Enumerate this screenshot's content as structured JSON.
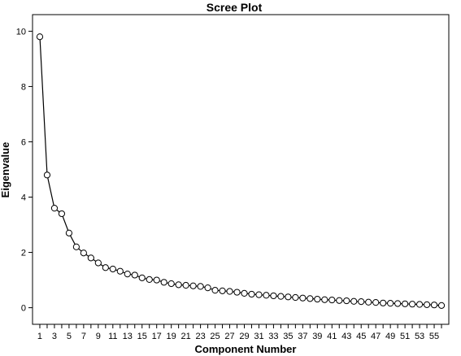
{
  "chart_data": {
    "type": "line",
    "title": "Scree Plot",
    "xlabel": "Component Number",
    "ylabel": "Eigenvalue",
    "xlim": [
      0,
      57
    ],
    "ylim": [
      -0.6,
      10.6
    ],
    "x_ticks": [
      1,
      3,
      5,
      7,
      9,
      11,
      13,
      15,
      17,
      19,
      21,
      23,
      25,
      27,
      29,
      31,
      33,
      35,
      37,
      39,
      41,
      43,
      45,
      47,
      49,
      51,
      53,
      55
    ],
    "y_ticks": [
      0,
      2,
      4,
      6,
      8,
      10
    ],
    "x": [
      1,
      2,
      3,
      4,
      5,
      6,
      7,
      8,
      9,
      10,
      11,
      12,
      13,
      14,
      15,
      16,
      17,
      18,
      19,
      20,
      21,
      22,
      23,
      24,
      25,
      26,
      27,
      28,
      29,
      30,
      31,
      32,
      33,
      34,
      35,
      36,
      37,
      38,
      39,
      40,
      41,
      42,
      43,
      44,
      45,
      46,
      47,
      48,
      49,
      50,
      51,
      52,
      53,
      54,
      55,
      56
    ],
    "series": [
      {
        "values": [
          9.8,
          4.8,
          3.6,
          3.4,
          2.7,
          2.2,
          1.98,
          1.8,
          1.62,
          1.45,
          1.4,
          1.32,
          1.22,
          1.18,
          1.08,
          1.02,
          1.0,
          0.92,
          0.87,
          0.83,
          0.81,
          0.79,
          0.77,
          0.72,
          0.63,
          0.61,
          0.59,
          0.56,
          0.52,
          0.49,
          0.47,
          0.45,
          0.43,
          0.41,
          0.39,
          0.37,
          0.35,
          0.33,
          0.31,
          0.29,
          0.28,
          0.26,
          0.25,
          0.23,
          0.22,
          0.2,
          0.19,
          0.17,
          0.16,
          0.15,
          0.14,
          0.13,
          0.12,
          0.11,
          0.1,
          0.08
        ]
      }
    ],
    "grid": false,
    "marker": "open-circle"
  }
}
